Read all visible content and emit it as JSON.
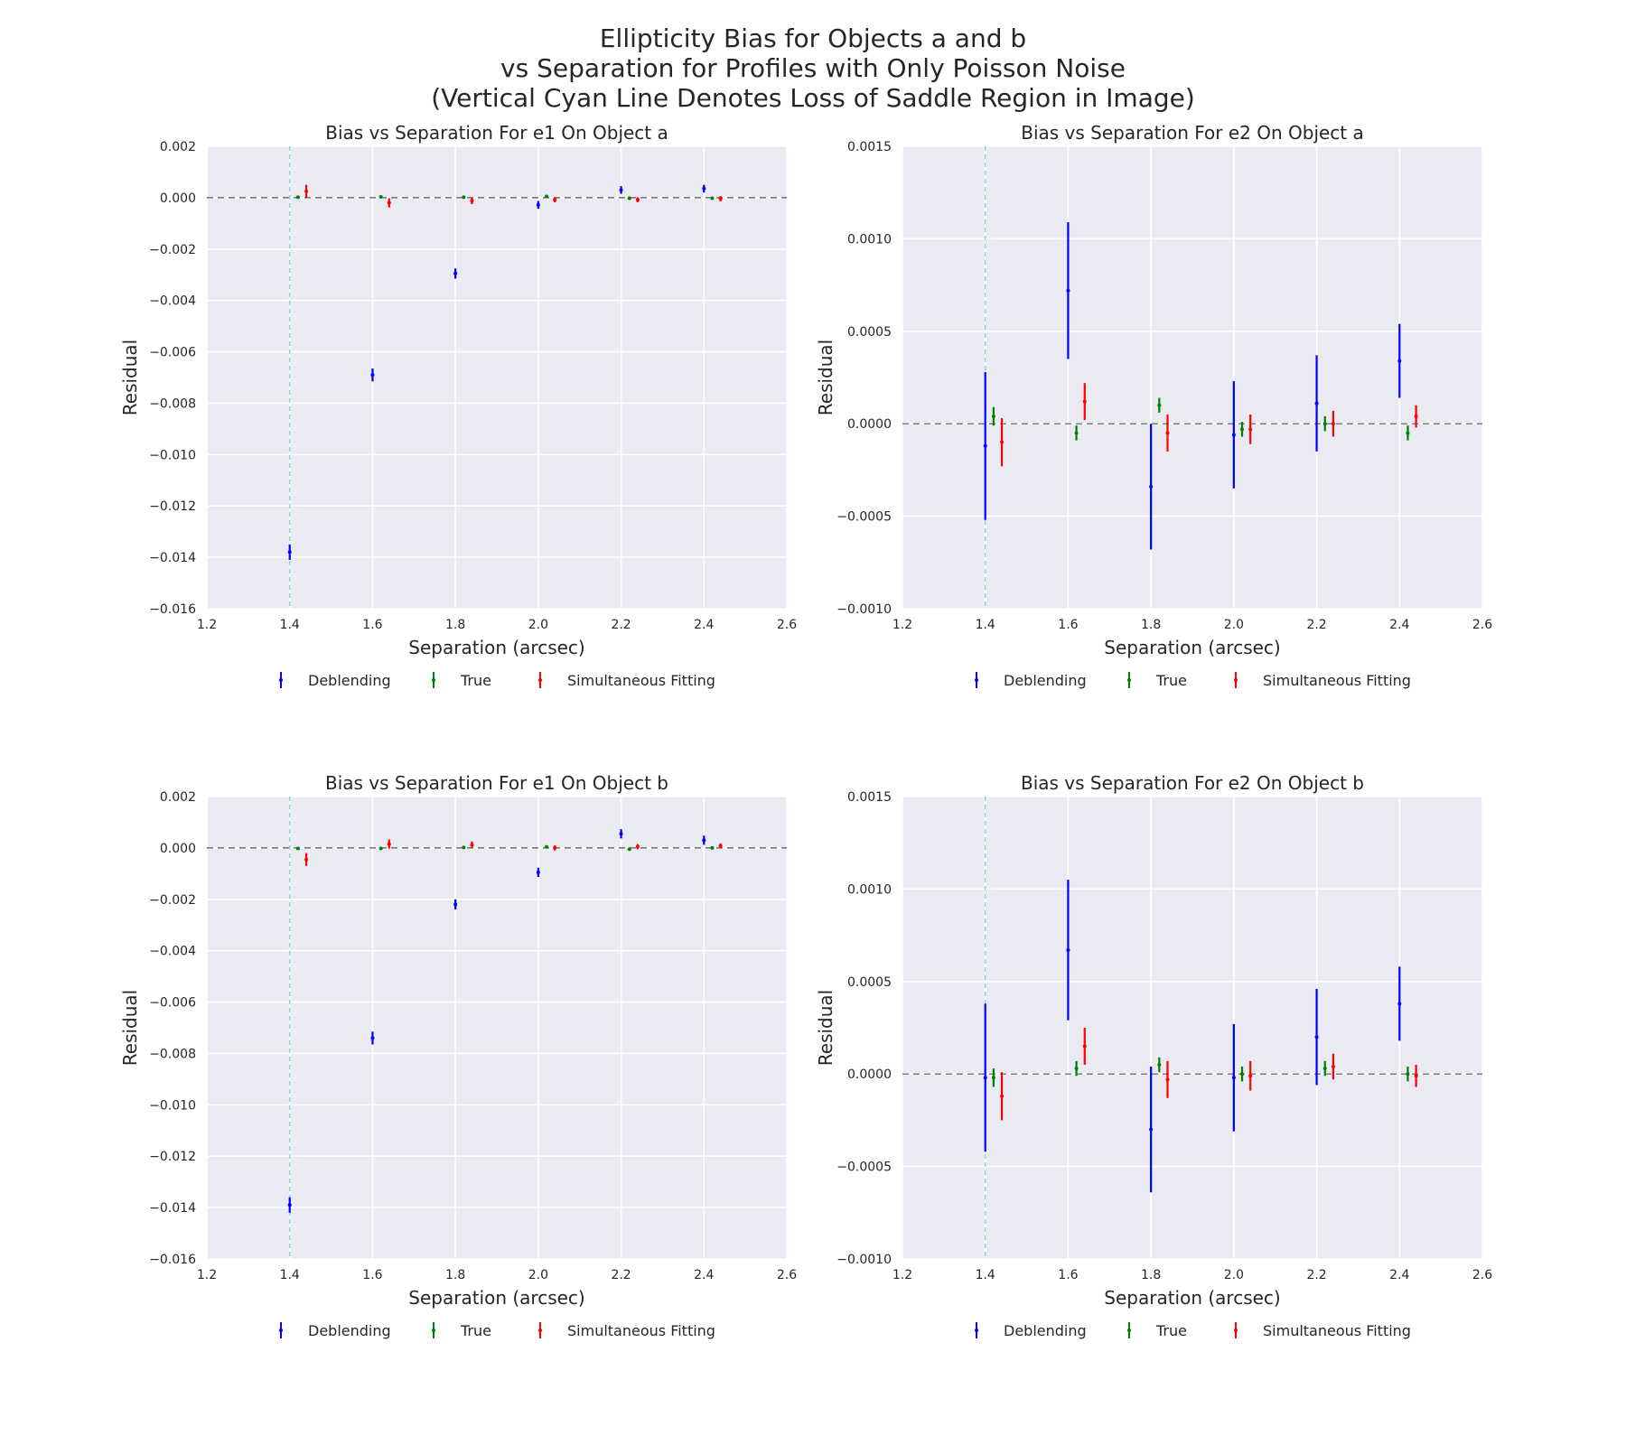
{
  "figure": {
    "title_lines": [
      "Ellipticity Bias for Objects a and b",
      "vs Separation for Profiles with Only Poisson Noise",
      "(Vertical Cyan Line Denotes Loss of Saddle Region in Image)"
    ]
  },
  "colors": {
    "background": "#eaeaf2",
    "grid": "#ffffff",
    "cyan_line": "#7fd4d4",
    "zero_line": "#555555",
    "Deblending": "#0000ff",
    "True": "#007f00",
    "Simultaneous Fitting": "#ff0000"
  },
  "chart_data": [
    {
      "type": "scatter",
      "title": "Bias vs Separation For e1 On Object a",
      "xlabel": "Separation (arcsec)",
      "ylabel": "Residual",
      "xlim": [
        1.2,
        2.6
      ],
      "ylim": [
        -0.016,
        0.002
      ],
      "xticks": [
        "1.2",
        "1.4",
        "1.6",
        "1.8",
        "2.0",
        "2.2",
        "2.4",
        "2.6"
      ],
      "yticks": [
        "0.002",
        "0.000",
        "−0.002",
        "−0.004",
        "−0.006",
        "−0.008",
        "−0.010",
        "−0.012",
        "−0.014",
        "−0.016"
      ],
      "vline_x": 1.4,
      "hline_y": 0,
      "legend_position": "below",
      "series": [
        {
          "name": "Deblending",
          "x": [
            1.4,
            1.6,
            1.8,
            2.0,
            2.2,
            2.4
          ],
          "y": [
            -0.0138,
            -0.0069,
            -0.00295,
            -0.00028,
            0.0003,
            0.00035
          ],
          "yerr": [
            0.0003,
            0.00025,
            0.0002,
            0.00015,
            0.00015,
            0.00015
          ]
        },
        {
          "name": "True",
          "x": [
            1.42,
            1.62,
            1.82,
            2.02,
            2.22,
            2.42
          ],
          "y": [
            2e-05,
            3e-05,
            2e-05,
            5e-05,
            -2e-05,
            -2e-05
          ],
          "yerr": [
            5e-05,
            5e-05,
            5e-05,
            5e-05,
            5e-05,
            5e-05
          ]
        },
        {
          "name": "Simultaneous Fitting",
          "x": [
            1.44,
            1.64,
            1.84,
            2.04,
            2.24,
            2.44
          ],
          "y": [
            0.00025,
            -0.0002,
            -0.00012,
            -8e-05,
            -8e-05,
            -4e-05
          ],
          "yerr": [
            0.00025,
            0.00018,
            0.00013,
            0.0001,
            0.0001,
            0.0001
          ]
        }
      ]
    },
    {
      "type": "scatter",
      "title": "Bias vs Separation For e2 On Object a",
      "xlabel": "Separation (arcsec)",
      "ylabel": "Residual",
      "xlim": [
        1.2,
        2.6
      ],
      "ylim": [
        -0.001,
        0.0015
      ],
      "xticks": [
        "1.2",
        "1.4",
        "1.6",
        "1.8",
        "2.0",
        "2.2",
        "2.4",
        "2.6"
      ],
      "yticks": [
        "0.0015",
        "0.0010",
        "0.0005",
        "0.0000",
        "−0.0005",
        "−0.0010"
      ],
      "vline_x": 1.4,
      "hline_y": 0,
      "legend_position": "below",
      "series": [
        {
          "name": "Deblending",
          "x": [
            1.4,
            1.6,
            1.8,
            2.0,
            2.2,
            2.4
          ],
          "y": [
            -0.00012,
            0.00072,
            -0.00034,
            -6e-05,
            0.00011,
            0.00034
          ],
          "yerr": [
            0.0004,
            0.00037,
            0.00034,
            0.00029,
            0.00026,
            0.0002
          ]
        },
        {
          "name": "True",
          "x": [
            1.42,
            1.62,
            1.82,
            2.02,
            2.22,
            2.42
          ],
          "y": [
            4e-05,
            -5e-05,
            0.0001,
            -3e-05,
            0.0,
            -5e-05
          ],
          "yerr": [
            5e-05,
            4e-05,
            4e-05,
            4e-05,
            4e-05,
            4e-05
          ]
        },
        {
          "name": "Simultaneous Fitting",
          "x": [
            1.44,
            1.64,
            1.84,
            2.04,
            2.24,
            2.44
          ],
          "y": [
            -0.0001,
            0.00012,
            -5e-05,
            -3e-05,
            0.0,
            4e-05
          ],
          "yerr": [
            0.00013,
            0.0001,
            0.0001,
            8e-05,
            7e-05,
            6e-05
          ]
        }
      ]
    },
    {
      "type": "scatter",
      "title": "Bias vs Separation For e1 On Object b",
      "xlabel": "Separation (arcsec)",
      "ylabel": "Residual",
      "xlim": [
        1.2,
        2.6
      ],
      "ylim": [
        -0.016,
        0.002
      ],
      "xticks": [
        "1.2",
        "1.4",
        "1.6",
        "1.8",
        "2.0",
        "2.2",
        "2.4",
        "2.6"
      ],
      "yticks": [
        "0.002",
        "0.000",
        "−0.002",
        "−0.004",
        "−0.006",
        "−0.008",
        "−0.010",
        "−0.012",
        "−0.014",
        "−0.016"
      ],
      "vline_x": 1.4,
      "hline_y": 0,
      "legend_position": "below",
      "series": [
        {
          "name": "Deblending",
          "x": [
            1.4,
            1.6,
            1.8,
            2.0,
            2.2,
            2.4
          ],
          "y": [
            -0.0139,
            -0.0074,
            -0.0022,
            -0.00095,
            0.00055,
            0.0003
          ],
          "yerr": [
            0.0003,
            0.00025,
            0.0002,
            0.00018,
            0.00018,
            0.00018
          ]
        },
        {
          "name": "True",
          "x": [
            1.42,
            1.62,
            1.82,
            2.02,
            2.22,
            2.42
          ],
          "y": [
            -2e-05,
            -2e-05,
            2e-05,
            4e-05,
            -5e-05,
            0.0
          ],
          "yerr": [
            5e-05,
            5e-05,
            5e-05,
            5e-05,
            5e-05,
            5e-05
          ]
        },
        {
          "name": "Simultaneous Fitting",
          "x": [
            1.44,
            1.64,
            1.84,
            2.04,
            2.24,
            2.44
          ],
          "y": [
            -0.00045,
            0.00015,
            0.00012,
            0.0,
            5e-05,
            8e-05
          ],
          "yerr": [
            0.00025,
            0.00018,
            0.00013,
            0.0001,
            0.0001,
            0.0001
          ]
        }
      ]
    },
    {
      "type": "scatter",
      "title": "Bias vs Separation For e2 On Object b",
      "xlabel": "Separation (arcsec)",
      "ylabel": "Residual",
      "xlim": [
        1.2,
        2.6
      ],
      "ylim": [
        -0.001,
        0.0015
      ],
      "xticks": [
        "1.2",
        "1.4",
        "1.6",
        "1.8",
        "2.0",
        "2.2",
        "2.4",
        "2.6"
      ],
      "yticks": [
        "0.0015",
        "0.0010",
        "0.0005",
        "0.0000",
        "−0.0005",
        "−0.0010"
      ],
      "vline_x": 1.4,
      "hline_y": 0,
      "legend_position": "below",
      "series": [
        {
          "name": "Deblending",
          "x": [
            1.4,
            1.6,
            1.8,
            2.0,
            2.2,
            2.4
          ],
          "y": [
            -2e-05,
            0.00067,
            -0.0003,
            -2e-05,
            0.0002,
            0.00038
          ],
          "yerr": [
            0.0004,
            0.00038,
            0.00034,
            0.00029,
            0.00026,
            0.0002
          ]
        },
        {
          "name": "True",
          "x": [
            1.42,
            1.62,
            1.82,
            2.02,
            2.22,
            2.42
          ],
          "y": [
            -2e-05,
            3e-05,
            5e-05,
            0.0,
            3e-05,
            0.0
          ],
          "yerr": [
            5e-05,
            4e-05,
            4e-05,
            4e-05,
            4e-05,
            4e-05
          ]
        },
        {
          "name": "Simultaneous Fitting",
          "x": [
            1.44,
            1.64,
            1.84,
            2.04,
            2.24,
            2.44
          ],
          "y": [
            -0.00012,
            0.00015,
            -3e-05,
            -1e-05,
            4e-05,
            -1e-05
          ],
          "yerr": [
            0.00013,
            0.0001,
            0.0001,
            8e-05,
            7e-05,
            6e-05
          ]
        }
      ]
    }
  ]
}
